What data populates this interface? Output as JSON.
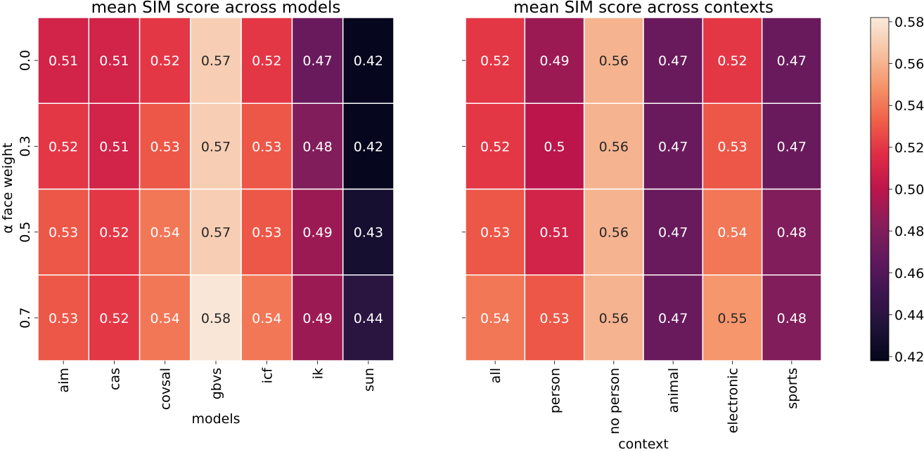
{
  "chart_data": [
    {
      "type": "heatmap",
      "title": "mean SIM score across models",
      "xlabel": "models",
      "ylabel": "α face weight",
      "x_categories": [
        "aim",
        "cas",
        "covsal",
        "gbvs",
        "icf",
        "ik",
        "sun"
      ],
      "y_categories": [
        "0.0",
        "0.3",
        "0.5",
        "0.7"
      ],
      "values": [
        [
          0.51,
          0.51,
          0.52,
          0.57,
          0.52,
          0.47,
          0.42
        ],
        [
          0.52,
          0.51,
          0.53,
          0.57,
          0.53,
          0.48,
          0.42
        ],
        [
          0.53,
          0.52,
          0.54,
          0.57,
          0.53,
          0.49,
          0.43
        ],
        [
          0.53,
          0.52,
          0.54,
          0.58,
          0.54,
          0.49,
          0.44
        ]
      ],
      "value_labels": [
        [
          "0.51",
          "0.51",
          "0.52",
          "0.57",
          "0.52",
          "0.47",
          "0.42"
        ],
        [
          "0.52",
          "0.51",
          "0.53",
          "0.57",
          "0.53",
          "0.48",
          "0.42"
        ],
        [
          "0.53",
          "0.52",
          "0.54",
          "0.57",
          "0.53",
          "0.49",
          "0.43"
        ],
        [
          "0.53",
          "0.52",
          "0.54",
          "0.58",
          "0.54",
          "0.49",
          "0.44"
        ]
      ],
      "grid": false
    },
    {
      "type": "heatmap",
      "title": "mean SIM score across contexts",
      "xlabel": "context",
      "ylabel": "",
      "x_categories": [
        "all",
        "person",
        "no person",
        "animal",
        "electronic",
        "sports"
      ],
      "y_categories": [
        "0.0",
        "0.3",
        "0.5",
        "0.7"
      ],
      "values": [
        [
          0.52,
          0.49,
          0.56,
          0.47,
          0.52,
          0.47
        ],
        [
          0.52,
          0.5,
          0.56,
          0.47,
          0.53,
          0.47
        ],
        [
          0.53,
          0.51,
          0.56,
          0.47,
          0.54,
          0.48
        ],
        [
          0.54,
          0.53,
          0.56,
          0.47,
          0.55,
          0.48
        ]
      ],
      "value_labels": [
        [
          "0.52",
          "0.49",
          "0.56",
          "0.47",
          "0.52",
          "0.47"
        ],
        [
          "0.52",
          "0.5",
          "0.56",
          "0.47",
          "0.53",
          "0.47"
        ],
        [
          "0.53",
          "0.51",
          "0.56",
          "0.47",
          "0.54",
          "0.48"
        ],
        [
          "0.54",
          "0.53",
          "0.56",
          "0.47",
          "0.55",
          "0.48"
        ]
      ],
      "grid": false
    }
  ],
  "colorbar": {
    "colormap": "rocket",
    "vmin": 0.418,
    "vmax": 0.582,
    "ticks": [
      "0.42",
      "0.44",
      "0.46",
      "0.48",
      "0.50",
      "0.52",
      "0.54",
      "0.56",
      "0.58"
    ],
    "tick_values": [
      0.42,
      0.44,
      0.46,
      0.48,
      0.5,
      0.52,
      0.54,
      0.56,
      0.58
    ]
  }
}
